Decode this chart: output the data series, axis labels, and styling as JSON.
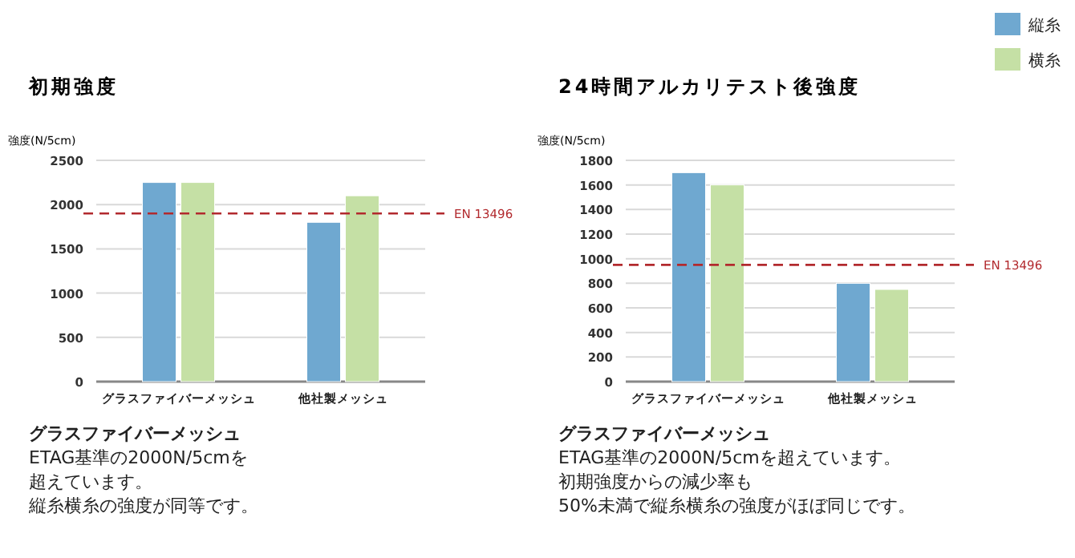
{
  "chart_data": [
    {
      "type": "bar",
      "title": "初期強度",
      "ylabel": "強度(N/5cm)",
      "categories": [
        "グラスファイバーメッシュ",
        "他社製メッシュ"
      ],
      "series": [
        {
          "color": "#6fa8d0",
          "values": [
            2250,
            1800
          ]
        },
        {
          "color": "#c5e0a5",
          "values": [
            2250,
            2100
          ]
        }
      ],
      "ylim": [
        0,
        2500
      ],
      "yticks": [
        0,
        500,
        1000,
        1500,
        2000,
        2500
      ],
      "grid": "y",
      "ref_lines": [
        {
          "axis": "y",
          "value": 1900,
          "label": "EN 13496",
          "color": "#b22a2e",
          "line_style": "dashed"
        }
      ],
      "annotations": [
        "グラスファイバーメッシュ",
        "ETAG基準の2000N/5cmを",
        "超えています。",
        "縦糸横糸の強度が同等です。"
      ]
    },
    {
      "type": "bar",
      "title": "24時間アルカリテスト後強度",
      "ylabel": "強度(N/5cm)",
      "categories": [
        "グラスファイバーメッシュ",
        "他社製メッシュ"
      ],
      "series": [
        {
          "name": "縦糸",
          "color": "#6fa8d0",
          "values": [
            1700,
            800
          ]
        },
        {
          "name": "横糸",
          "color": "#c5e0a5",
          "values": [
            1600,
            750
          ]
        }
      ],
      "ylim": [
        0,
        1800
      ],
      "yticks": [
        0,
        200,
        400,
        600,
        800,
        1000,
        1200,
        1400,
        1600,
        1800
      ],
      "grid": "y",
      "legend": "top right",
      "ref_lines": [
        {
          "axis": "y",
          "value": 950,
          "label": "EN 13496",
          "color": "#b22a2e",
          "line_style": "dashed"
        }
      ],
      "annotations": [
        "グラスファイバーメッシュ",
        "ETAG基準の2000N/5cmを超えています。",
        "初期強度からの減少率も",
        "50%未満で縦糸横糸の強度がほぼ同じです。"
      ]
    }
  ]
}
